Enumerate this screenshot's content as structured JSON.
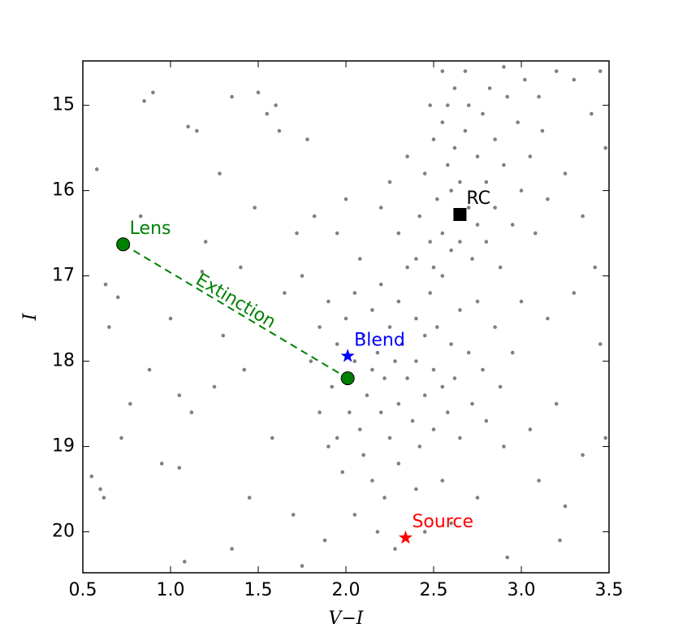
{
  "chart_data": {
    "type": "scatter",
    "xlabel": "V−I",
    "ylabel": "I",
    "xlim": [
      0.5,
      3.5
    ],
    "ylim": [
      14.48,
      20.48
    ],
    "invert_y": true,
    "xticks": [
      0.5,
      {
        "value": 1,
        "label": "1.0"
      },
      1.5,
      {
        "value": 2,
        "label": "2.0"
      },
      2.5,
      {
        "value": 3,
        "label": "3.0"
      },
      3.5
    ],
    "yticks": [
      15,
      16,
      17,
      18,
      19,
      20
    ],
    "series": [
      {
        "color": "#808080",
        "x": [
          0.55,
          0.6,
          0.62,
          0.58,
          0.63,
          0.65,
          0.7,
          0.72,
          0.85,
          0.9,
          0.88,
          0.95,
          1.05,
          1.08,
          1.1,
          1.15,
          1.12,
          1.2,
          1.25,
          1.3,
          1.35,
          1.35,
          1.4,
          1.42,
          1.45,
          1.5,
          1.55,
          1.6,
          1.62,
          1.58,
          1.65,
          1.7,
          1.72,
          1.75,
          1.78,
          0.77,
          0.83,
          1.0,
          1.05,
          1.18,
          1.28,
          1.48,
          1.8,
          1.85,
          1.85,
          1.9,
          1.9,
          1.92,
          1.95,
          1.95,
          1.98,
          2.0,
          2.02,
          2.05,
          2.05,
          2.08,
          2.1,
          2.1,
          2.12,
          2.15,
          2.15,
          2.15,
          2.18,
          2.2,
          2.2,
          2.22,
          2.25,
          2.25,
          2.28,
          2.3,
          2.3,
          2.3,
          2.32,
          2.35,
          2.35,
          2.38,
          2.4,
          2.4,
          2.42,
          2.45,
          2.45,
          2.48,
          2.5,
          2.5,
          2.52,
          2.55,
          2.55,
          2.58,
          2.6,
          2.62,
          2.65,
          2.65,
          2.7,
          2.72,
          2.75,
          2.78,
          2.8,
          2.85,
          2.88,
          2.9,
          2.95,
          2.22,
          2.4,
          2.55,
          2.05,
          2.18,
          2.28,
          2.45,
          2.6,
          2.75,
          1.88,
          1.95,
          2.0,
          2.08,
          1.82,
          1.75,
          2.2,
          2.25,
          2.3,
          2.35,
          2.4,
          2.42,
          2.45,
          2.48,
          2.5,
          2.5,
          2.52,
          2.55,
          2.55,
          2.58,
          2.6,
          2.6,
          2.62,
          2.65,
          2.65,
          2.68,
          2.7,
          2.7,
          2.72,
          2.75,
          2.75,
          2.78,
          2.8,
          2.8,
          2.82,
          2.85,
          2.85,
          2.88,
          2.9,
          2.92,
          2.95,
          2.98,
          3.0,
          3.02,
          3.05,
          3.08,
          3.1,
          3.12,
          3.15,
          3.2,
          3.25,
          3.3,
          3.35,
          3.4,
          3.45,
          3.48,
          3.42,
          2.55,
          2.62,
          2.48,
          2.58,
          2.68,
          2.9,
          3.15,
          3.3,
          3.45,
          3.2,
          3.35,
          3.48,
          3.25,
          3.05,
          3.1,
          3.0,
          3.22,
          2.92
        ],
        "values": [
          19.35,
          19.5,
          19.6,
          15.75,
          17.1,
          17.6,
          17.25,
          18.9,
          14.95,
          14.85,
          18.1,
          19.2,
          19.25,
          20.35,
          15.25,
          15.3,
          18.6,
          16.6,
          18.3,
          17.7,
          20.2,
          14.9,
          16.9,
          18.1,
          19.6,
          14.85,
          15.1,
          15.0,
          15.3,
          18.9,
          17.2,
          19.8,
          16.5,
          20.4,
          15.4,
          18.5,
          16.3,
          17.5,
          18.4,
          16.95,
          15.8,
          16.2,
          18.0,
          17.6,
          18.6,
          17.3,
          19.0,
          18.3,
          17.8,
          18.9,
          19.3,
          17.5,
          18.6,
          17.2,
          18.0,
          18.8,
          17.7,
          19.1,
          18.4,
          17.4,
          18.1,
          19.4,
          17.9,
          18.6,
          17.1,
          18.2,
          17.6,
          18.9,
          18.0,
          17.3,
          18.5,
          19.2,
          17.8,
          18.2,
          16.9,
          18.7,
          17.5,
          18.0,
          19.0,
          17.7,
          18.4,
          17.2,
          18.1,
          18.8,
          17.6,
          18.3,
          17.0,
          18.6,
          17.8,
          18.2,
          17.4,
          18.9,
          17.9,
          18.5,
          17.3,
          18.1,
          18.7,
          17.6,
          18.3,
          19.0,
          17.9,
          19.6,
          19.5,
          19.4,
          19.8,
          20.0,
          20.2,
          20.0,
          19.9,
          19.6,
          20.1,
          16.5,
          16.1,
          16.8,
          16.3,
          17.0,
          16.2,
          15.9,
          16.5,
          15.6,
          16.8,
          16.3,
          15.8,
          16.6,
          15.4,
          16.9,
          16.1,
          15.2,
          16.5,
          15.7,
          16.0,
          16.7,
          15.5,
          15.9,
          16.6,
          15.3,
          16.2,
          15.0,
          16.8,
          15.6,
          16.4,
          15.1,
          15.9,
          16.6,
          14.8,
          16.2,
          15.4,
          16.9,
          15.7,
          14.9,
          16.4,
          15.2,
          16.0,
          14.7,
          15.6,
          16.5,
          14.9,
          15.3,
          16.1,
          14.6,
          15.8,
          14.7,
          16.3,
          15.1,
          14.6,
          15.5,
          16.9,
          14.6,
          14.8,
          15.0,
          15.0,
          14.6,
          14.55,
          17.5,
          17.2,
          17.8,
          18.5,
          19.1,
          18.9,
          19.7,
          18.8,
          19.4,
          17.3,
          20.1,
          20.3
        ]
      }
    ],
    "markers": [
      {
        "label": "Lens",
        "x": 0.73,
        "y": 16.63,
        "marker": "circle",
        "color": "#008000"
      },
      {
        "x": 2.01,
        "y": 18.2,
        "marker": "circle",
        "color": "#008000"
      },
      {
        "label": "Blend",
        "x": 2.01,
        "y": 17.94,
        "marker": "star",
        "color": "#0000ff"
      },
      {
        "label": "Source",
        "x": 2.34,
        "y": 20.07,
        "marker": "star",
        "color": "#ff0000"
      },
      {
        "label": "RC",
        "x": 2.65,
        "y": 16.28,
        "marker": "square",
        "color": "#000000"
      }
    ],
    "extinction": {
      "text": "Extinction",
      "from": 0,
      "to": 1,
      "color": "#008000"
    }
  }
}
